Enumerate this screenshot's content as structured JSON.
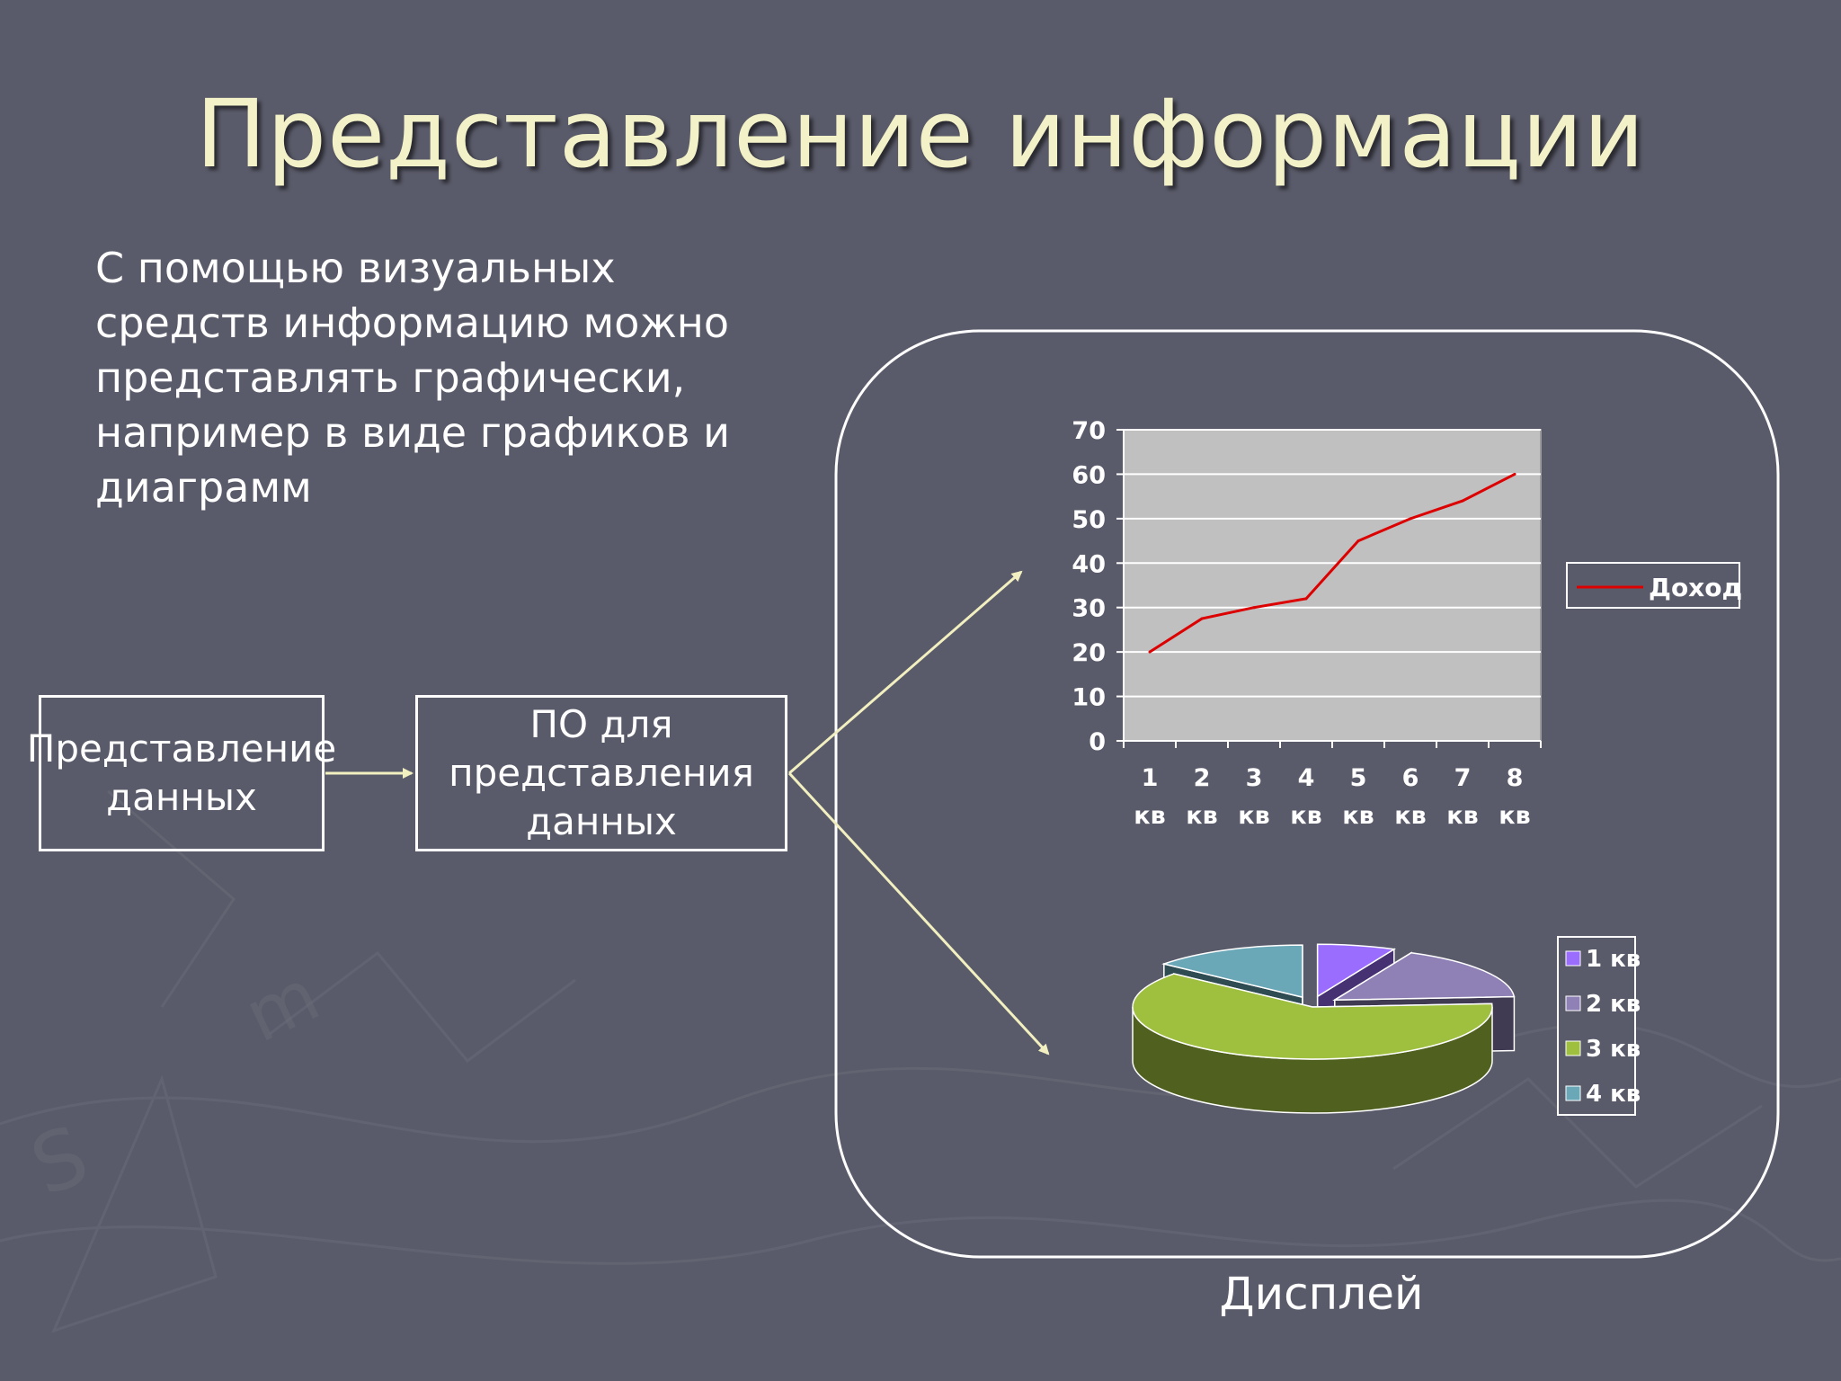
{
  "slide": {
    "title": "Представление информации",
    "body_text": "С помощью визуальных средств информацию можно представлять графически, например в виде графиков и диаграмм",
    "display_label": "Дисплей"
  },
  "diagram": {
    "boxes": [
      {
        "id": "data",
        "label": "Представление данных"
      },
      {
        "id": "software",
        "label": "ПО для представления данных"
      }
    ],
    "arrows": [
      {
        "from": "data",
        "to": "software"
      },
      {
        "from": "software",
        "to": "line-chart"
      },
      {
        "from": "software",
        "to": "pie-chart"
      }
    ]
  },
  "colors": {
    "background": "#5a5b6a",
    "title": "#f3f1c8",
    "arrow": "#f2f0c0",
    "line_series": "#dd0000",
    "plot_area": "#c0c0c0"
  },
  "chart_data": [
    {
      "type": "line",
      "categories": [
        [
          "1",
          "кв"
        ],
        [
          "2",
          "кв"
        ],
        [
          "3",
          "кв"
        ],
        [
          "4",
          "кв"
        ],
        [
          "5",
          "кв"
        ],
        [
          "6",
          "кв"
        ],
        [
          "7",
          "кв"
        ],
        [
          "8",
          "кв"
        ]
      ],
      "y_ticks": [
        0,
        10,
        20,
        30,
        40,
        50,
        60,
        70
      ],
      "ylim": [
        0,
        70
      ],
      "grid": true,
      "legend": "right",
      "series": [
        {
          "name": "Доход",
          "color": "#dd0000",
          "values": [
            20,
            27.5,
            30,
            32,
            45,
            50,
            54,
            60
          ]
        }
      ]
    },
    {
      "type": "pie",
      "style": "3d-exploded",
      "legend": "right",
      "slices": [
        {
          "label": "1 кв",
          "value": 7,
          "color": "#9b6dff"
        },
        {
          "label": "2 кв",
          "value": 17,
          "color": "#8f80b6"
        },
        {
          "label": "3 кв",
          "value": 62,
          "color": "#9fbf3e"
        },
        {
          "label": "4 кв",
          "value": 14,
          "color": "#6aa8b8"
        }
      ]
    }
  ]
}
